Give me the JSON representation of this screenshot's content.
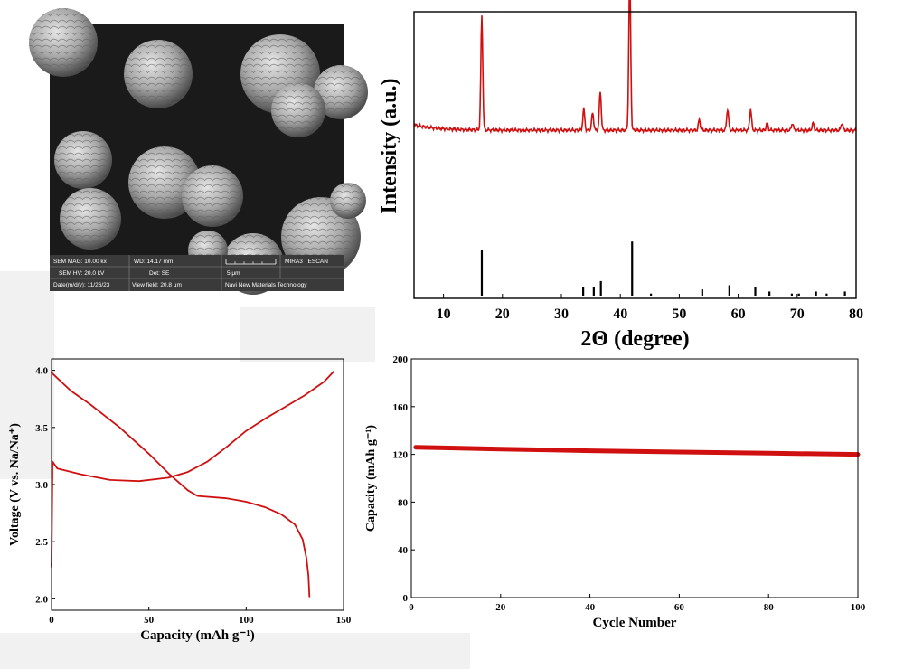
{
  "colors": {
    "curve": "#d01010",
    "stick": "#000000",
    "sem_bg": "#1a1a1a"
  },
  "sem": {
    "info": {
      "mag": "SEM MAG: 10.00 kx",
      "wd": "WD: 14.17 mm",
      "brand": "MIRA3 TESCAN",
      "hv": "SEM HV: 20.0 kV",
      "det": "Det: SE",
      "scale": "5 μm",
      "date": "Date(m/d/y): 11/26/23",
      "view": "View field: 20.8 μm",
      "company": "Navi New Materials Technology"
    }
  },
  "chart_data": [
    {
      "type": "line",
      "xlabel": "2Θ (degree)",
      "ylabel": "Intensity (a.u.)",
      "xlim": [
        5,
        80
      ],
      "xticks": [
        "10",
        "20",
        "30",
        "40",
        "50",
        "60",
        "70",
        "80"
      ],
      "series": [
        {
          "baseline": 0.22,
          "peaks": [
            {
              "x": 16.5,
              "y": 0.64
            },
            {
              "x": 33.8,
              "y": 0.12
            },
            {
              "x": 35.3,
              "y": 0.1
            },
            {
              "x": 36.6,
              "y": 0.22
            },
            {
              "x": 41.6,
              "y": 0.88
            },
            {
              "x": 53.4,
              "y": 0.06
            },
            {
              "x": 58.2,
              "y": 0.12
            },
            {
              "x": 62.1,
              "y": 0.12
            },
            {
              "x": 64.9,
              "y": 0.04
            },
            {
              "x": 69.2,
              "y": 0.04
            },
            {
              "x": 72.7,
              "y": 0.04
            },
            {
              "x": 77.6,
              "y": 0.04
            }
          ]
        }
      ],
      "reference_lines": [
        {
          "x": 16.5,
          "h": 0.22
        },
        {
          "x": 33.7,
          "h": 0.04
        },
        {
          "x": 35.5,
          "h": 0.04
        },
        {
          "x": 36.7,
          "h": 0.07
        },
        {
          "x": 42.0,
          "h": 0.26
        },
        {
          "x": 45.2,
          "h": 0.01
        },
        {
          "x": 53.9,
          "h": 0.03
        },
        {
          "x": 58.5,
          "h": 0.05
        },
        {
          "x": 62.9,
          "h": 0.04
        },
        {
          "x": 65.3,
          "h": 0.02
        },
        {
          "x": 69.1,
          "h": 0.01
        },
        {
          "x": 70.3,
          "h": 0.01
        },
        {
          "x": 73.2,
          "h": 0.02
        },
        {
          "x": 75.0,
          "h": 0.01
        },
        {
          "x": 78.1,
          "h": 0.02
        }
      ]
    },
    {
      "type": "line",
      "xlabel": "Capacity (mAh g⁻¹)",
      "ylabel": "Voltage (V vs. Na/Na⁺)",
      "xlim": [
        0,
        150
      ],
      "ylim": [
        1.9,
        4.1
      ],
      "xticks": [
        "0",
        "50",
        "100",
        "150"
      ],
      "yticks": [
        "2.0",
        "2.5",
        "3.0",
        "3.5",
        "4.0"
      ],
      "series": [
        {
          "points": [
            [
              0,
              3.98
            ],
            [
              10,
              3.82
            ],
            [
              20,
              3.7
            ],
            [
              35,
              3.5
            ],
            [
              50,
              3.27
            ],
            [
              60,
              3.1
            ],
            [
              70,
              2.95
            ],
            [
              75,
              2.9
            ],
            [
              90,
              2.88
            ],
            [
              100,
              2.85
            ],
            [
              110,
              2.8
            ],
            [
              118,
              2.74
            ],
            [
              125,
              2.65
            ],
            [
              129,
              2.52
            ],
            [
              131,
              2.35
            ],
            [
              132,
              2.2
            ],
            [
              132.5,
              2.02
            ]
          ]
        },
        {
          "points": [
            [
              0,
              2.28
            ],
            [
              0.5,
              3.2
            ],
            [
              3,
              3.14
            ],
            [
              15,
              3.09
            ],
            [
              30,
              3.04
            ],
            [
              45,
              3.03
            ],
            [
              60,
              3.06
            ],
            [
              70,
              3.11
            ],
            [
              80,
              3.2
            ],
            [
              90,
              3.33
            ],
            [
              100,
              3.47
            ],
            [
              110,
              3.58
            ],
            [
              120,
              3.68
            ],
            [
              130,
              3.78
            ],
            [
              140,
              3.9
            ],
            [
              145,
              3.99
            ]
          ]
        }
      ]
    },
    {
      "type": "line",
      "xlabel": "Cycle Number",
      "ylabel": "Capacity (mAh g⁻¹)",
      "xlim": [
        0,
        100
      ],
      "ylim": [
        0,
        200
      ],
      "xticks": [
        "0",
        "20",
        "40",
        "60",
        "80",
        "100"
      ],
      "yticks": [
        "0",
        "40",
        "80",
        "120",
        "160",
        "200"
      ],
      "series": [
        {
          "points": [
            [
              1,
              126
            ],
            [
              20,
              124.5
            ],
            [
              40,
              123
            ],
            [
              60,
              122
            ],
            [
              80,
              121
            ],
            [
              100,
              120
            ]
          ]
        }
      ]
    }
  ]
}
